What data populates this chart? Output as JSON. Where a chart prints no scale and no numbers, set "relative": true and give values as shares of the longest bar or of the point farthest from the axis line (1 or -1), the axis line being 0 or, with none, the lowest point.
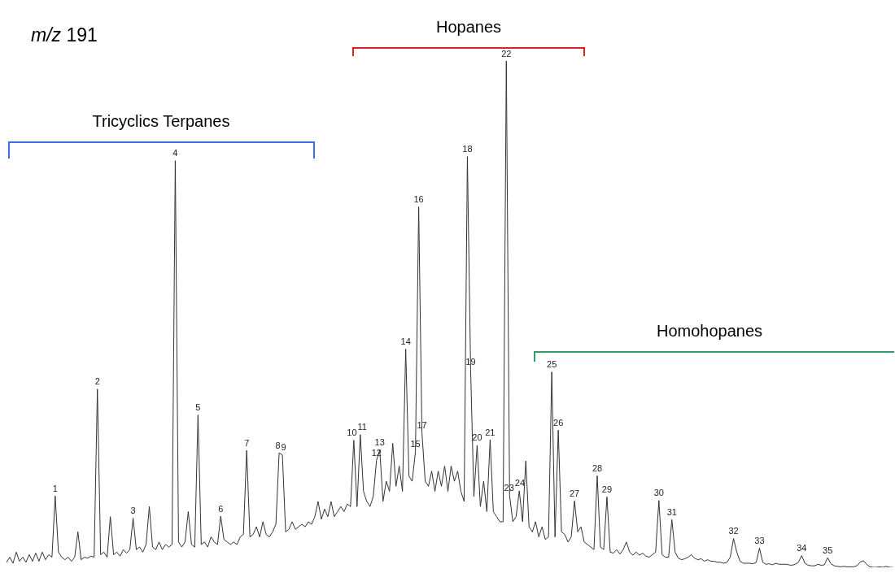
{
  "chart_data": {
    "type": "line",
    "title": "m/z 191",
    "relative": true,
    "color": "#333333",
    "categories": [
      null,
      null,
      null,
      null,
      null,
      null,
      null,
      null,
      null,
      null,
      null,
      null,
      null,
      null,
      null,
      null,
      null,
      null,
      null,
      null,
      null,
      null,
      null,
      null,
      null,
      null,
      null,
      null,
      null,
      null,
      null,
      null,
      null,
      null,
      null,
      null,
      null,
      null,
      null,
      null,
      null,
      null,
      null,
      null,
      null,
      null,
      null,
      null,
      null,
      null,
      null,
      null,
      null,
      null,
      null,
      null,
      null,
      null,
      null,
      null,
      null,
      null,
      null,
      null,
      null,
      null,
      null,
      null,
      null,
      null,
      null,
      null,
      null,
      null,
      null,
      null,
      null,
      null,
      null,
      null,
      null,
      null,
      null,
      null,
      null,
      null,
      null,
      null,
      null,
      null,
      null,
      null,
      null,
      null,
      null,
      null,
      null,
      null,
      null,
      null,
      null,
      null,
      null,
      null,
      null,
      null,
      null,
      null,
      null,
      null,
      null,
      null,
      null,
      null,
      null,
      null,
      null,
      null,
      null,
      null,
      null,
      null,
      null,
      null,
      null,
      null,
      null,
      null,
      null,
      null,
      null,
      null,
      null,
      null,
      null,
      null,
      null,
      null,
      null,
      null,
      null,
      null,
      null,
      null,
      null,
      null,
      null,
      null,
      null,
      null,
      null,
      null,
      null,
      null,
      null,
      null,
      null,
      null,
      null,
      null,
      null,
      null,
      null,
      null,
      null,
      null,
      null,
      null,
      null,
      null,
      null,
      null,
      null,
      null,
      null,
      null,
      null,
      null,
      null,
      null,
      null,
      null,
      null,
      null,
      null,
      null,
      null,
      null,
      null,
      null,
      null,
      null,
      null,
      null,
      null,
      null,
      null,
      null,
      null,
      null,
      null,
      null,
      null,
      null,
      null,
      null,
      null,
      null,
      null,
      null,
      null,
      null,
      null,
      null,
      null,
      null,
      null,
      null,
      null,
      null,
      null,
      null,
      null,
      null,
      null,
      null,
      null,
      null,
      null,
      null,
      null,
      null,
      null,
      null,
      null,
      null,
      null,
      null,
      null,
      null,
      null,
      null,
      null,
      null,
      null,
      null,
      null,
      null,
      null,
      null,
      null,
      null,
      null,
      null,
      null,
      null,
      null,
      null,
      null,
      null,
      null,
      null,
      null,
      null,
      null,
      null,
      null,
      null,
      null,
      null,
      null,
      null,
      null,
      null
    ],
    "values": [
      0.01,
      0.02,
      0.008,
      0.03,
      0.012,
      0.02,
      0.01,
      0.025,
      0.012,
      0.028,
      0.012,
      0.03,
      0.015,
      0.025,
      0.02,
      0.141,
      0.03,
      0.02,
      0.015,
      0.02,
      0.012,
      0.02,
      0.07,
      0.015,
      0.02,
      0.018,
      0.022,
      0.02,
      0.352,
      0.025,
      0.03,
      0.02,
      0.1,
      0.025,
      0.03,
      0.022,
      0.035,
      0.028,
      0.035,
      0.097,
      0.035,
      0.04,
      0.03,
      0.045,
      0.12,
      0.04,
      0.035,
      0.05,
      0.035,
      0.045,
      0.04,
      0.045,
      0.803,
      0.05,
      0.04,
      0.05,
      0.11,
      0.045,
      0.04,
      0.301,
      0.045,
      0.05,
      0.04,
      0.06,
      0.05,
      0.045,
      0.101,
      0.055,
      0.05,
      0.045,
      0.05,
      0.045,
      0.06,
      0.065,
      0.231,
      0.06,
      0.065,
      0.08,
      0.06,
      0.09,
      0.065,
      0.06,
      0.07,
      0.085,
      0.226,
      0.222,
      0.07,
      0.075,
      0.09,
      0.075,
      0.08,
      0.085,
      0.08,
      0.09,
      0.085,
      0.1,
      0.13,
      0.095,
      0.115,
      0.1,
      0.13,
      0.1,
      0.11,
      0.12,
      0.11,
      0.125,
      0.12,
      0.251,
      0.12,
      0.262,
      0.15,
      0.13,
      0.12,
      0.14,
      0.211,
      0.232,
      0.13,
      0.17,
      0.15,
      0.245,
      0.16,
      0.2,
      0.15,
      0.431,
      0.18,
      0.17,
      0.229,
      0.712,
      0.266,
      0.17,
      0.16,
      0.19,
      0.15,
      0.19,
      0.16,
      0.2,
      0.15,
      0.2,
      0.17,
      0.19,
      0.15,
      0.13,
      0.811,
      0.391,
      0.14,
      0.241,
      0.12,
      0.17,
      0.11,
      0.252,
      0.11,
      0.1,
      0.09,
      0.09,
      1,
      0.142,
      0.09,
      0.1,
      0.151,
      0.09,
      0.21,
      0.08,
      0.07,
      0.09,
      0.06,
      0.08,
      0.055,
      0.06,
      0.386,
      0.06,
      0.271,
      0.07,
      0.065,
      0.05,
      0.06,
      0.131,
      0.07,
      0.08,
      0.05,
      0.045,
      0.04,
      0.035,
      0.181,
      0.04,
      0.035,
      0.139,
      0.03,
      0.028,
      0.035,
      0.026,
      0.035,
      0.05,
      0.03,
      0.024,
      0.03,
      0.024,
      0.028,
      0.022,
      0.02,
      0.025,
      0.03,
      0.132,
      0.025,
      0.02,
      0.02,
      0.094,
      0.03,
      0.018,
      0.015,
      0.017,
      0.02,
      0.025,
      0.018,
      0.015,
      0.017,
      0.012,
      0.015,
      0.012,
      0.012,
      0.01,
      0.01,
      0.008,
      0.01,
      0.02,
      0.057,
      0.03,
      0.012,
      0.008,
      0.008,
      0.008,
      0.007,
      0.01,
      0.038,
      0.01,
      0.006,
      0.007,
      0.005,
      0.008,
      0.006,
      0.006,
      0.006,
      0.005,
      0.004,
      0.006,
      0.01,
      0.023,
      0.008,
      0.004,
      0.003,
      0.003,
      0.006,
      0.004,
      0.005,
      0.019,
      0.007,
      0.003,
      0.002,
      0.001,
      0.002,
      0.001,
      0.001,
      0.001,
      0.003,
      0.01,
      0.013,
      0.006,
      0.001,
      0,
      0,
      0.001,
      0,
      0.002,
      0,
      0
    ],
    "annotations": [
      "Tricyclics Terpanes",
      "Hopanes",
      "Homohopanes",
      {
        "text": "1",
        "y": 0.141
      },
      {
        "text": "2",
        "y": 0.352
      },
      {
        "text": "3",
        "y": 0.097
      },
      {
        "text": "4",
        "y": 0.803
      },
      {
        "text": "5",
        "y": 0.301
      },
      {
        "text": "6",
        "y": 0.101
      },
      {
        "text": "7",
        "y": 0.231
      },
      {
        "text": "8",
        "y": 0.226
      },
      {
        "text": "9",
        "y": 0.222
      },
      {
        "text": "10",
        "y": 0.251
      },
      {
        "text": "11",
        "y": 0.262
      },
      {
        "text": "12",
        "y": 0.211
      },
      {
        "text": "13",
        "y": 0.232
      },
      {
        "text": "14",
        "y": 0.431
      },
      {
        "text": "15",
        "y": 0.229
      },
      {
        "text": "16",
        "y": 0.712
      },
      {
        "text": "17",
        "y": 0.266
      },
      {
        "text": "18",
        "y": 0.811
      },
      {
        "text": "19",
        "y": 0.391
      },
      {
        "text": "20",
        "y": 0.241
      },
      {
        "text": "21",
        "y": 0.252
      },
      {
        "text": "22",
        "y": 1
      },
      {
        "text": "23",
        "y": 0.142
      },
      {
        "text": "24",
        "y": 0.151
      },
      {
        "text": "25",
        "y": 0.386
      },
      {
        "text": "26",
        "y": 0.271
      },
      {
        "text": "27",
        "y": 0.131
      },
      {
        "text": "28",
        "y": 0.181
      },
      {
        "text": "29",
        "y": 0.139
      },
      {
        "text": "30",
        "y": 0.132
      },
      {
        "text": "31",
        "y": 0.094
      },
      {
        "text": "32",
        "y": 0.057
      },
      {
        "text": "33",
        "y": 0.038
      },
      {
        "text": "34",
        "y": 0.023
      },
      {
        "text": "35",
        "y": 0.019
      }
    ]
  }
}
